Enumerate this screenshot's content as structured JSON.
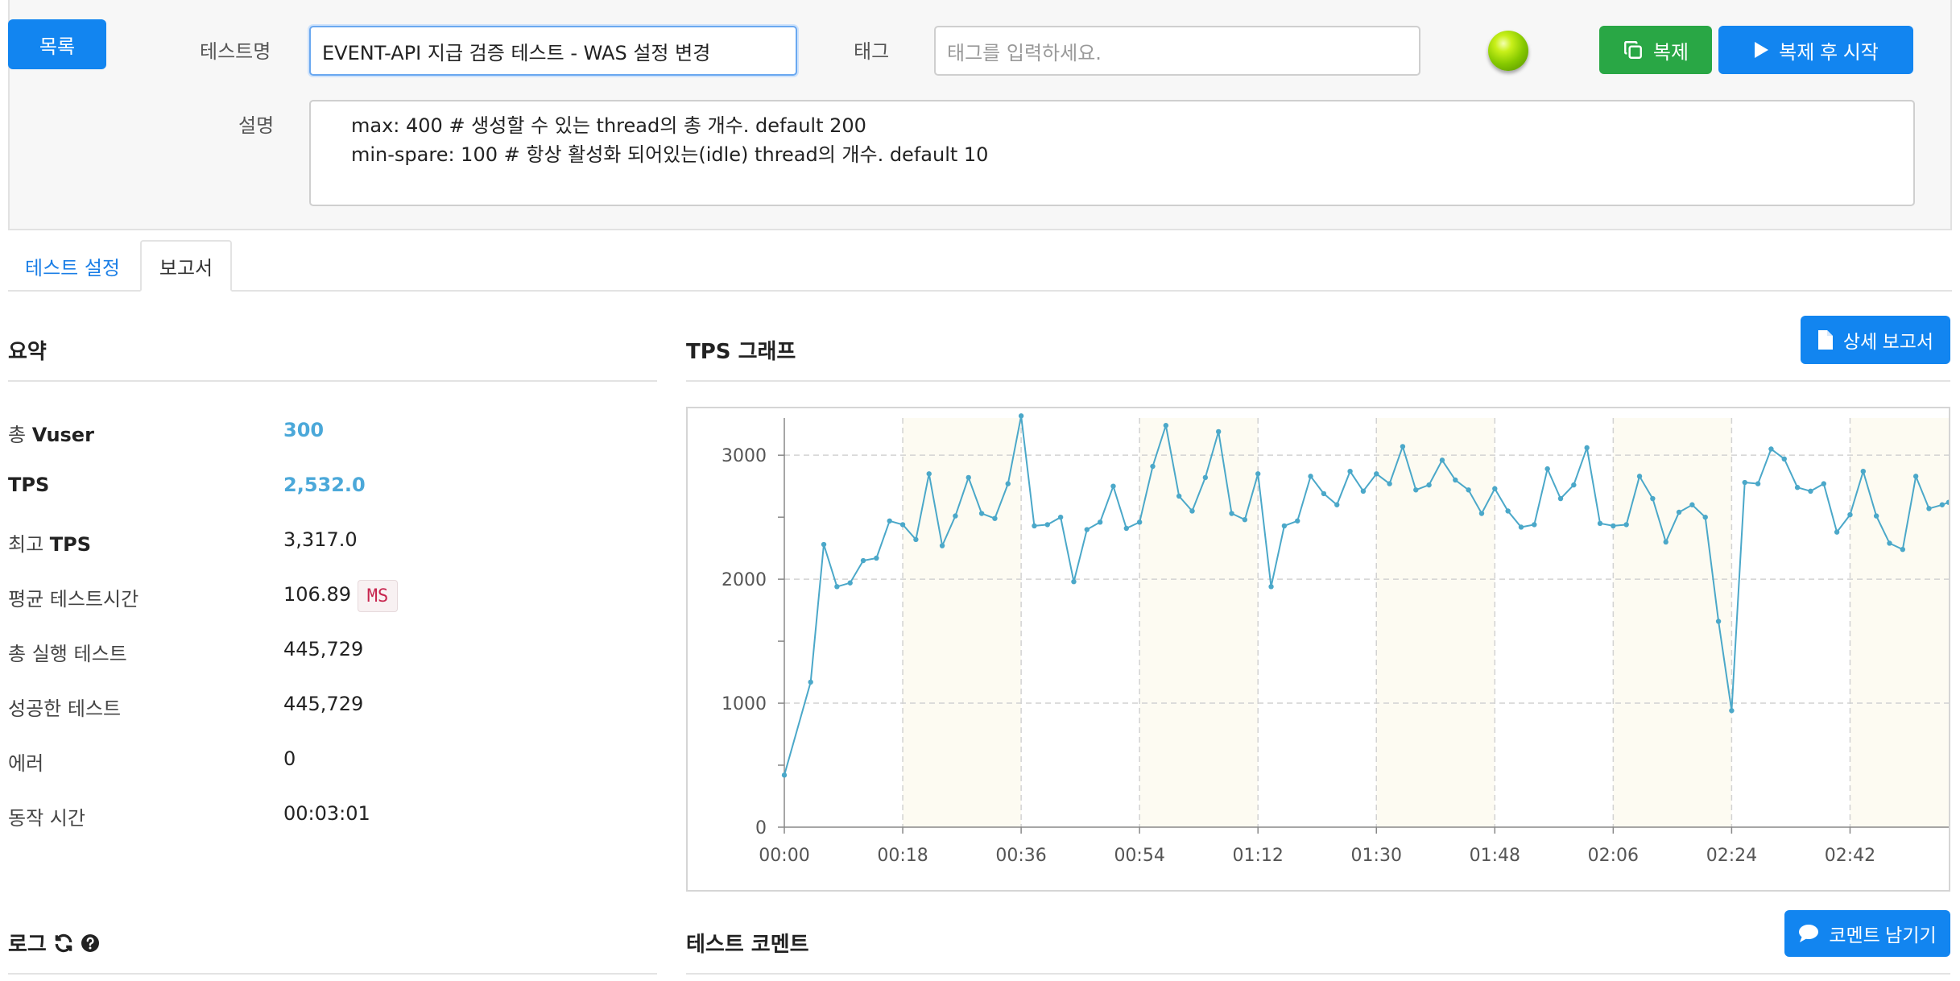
{
  "header": {
    "list_button": "목록",
    "test_name_label": "테스트명",
    "test_name_value": "EVENT-API 지급 검증 테스트 - WAS 설정 변경",
    "tag_label": "태그",
    "tag_placeholder": "태그를 입력하세요.",
    "status_color": "#86c900",
    "clone_button": "복제",
    "clone_start_button": "복제 후 시작",
    "description_label": "설명",
    "description_lines": [
      "max: 400 # 생성할 수 있는 thread의 총 개수. default 200",
      "min-spare: 100 # 항상 활성화 되어있는(idle) thread의 개수. default 10"
    ]
  },
  "tabs": [
    {
      "label": "테스트 설정",
      "active": false
    },
    {
      "label": "보고서",
      "active": true
    }
  ],
  "summary": {
    "title": "요약",
    "rows": [
      {
        "prefix": "총 ",
        "bold": "Vuser",
        "value": "300",
        "accent": true
      },
      {
        "prefix": "",
        "bold": "TPS",
        "value": "2,532.0",
        "accent": true
      },
      {
        "prefix": "최고 ",
        "bold": "TPS",
        "value": "3,317.0",
        "accent": false
      },
      {
        "prefix": "평균 테스트시간",
        "bold": "",
        "value": "106.89",
        "accent": false,
        "unit": "MS"
      },
      {
        "prefix": "총 실행 테스트",
        "bold": "",
        "value": "445,729",
        "accent": false
      },
      {
        "prefix": "성공한 테스트",
        "bold": "",
        "value": "445,729",
        "accent": false
      },
      {
        "prefix": "에러",
        "bold": "",
        "value": "0",
        "accent": false
      },
      {
        "prefix": "동작 시간",
        "bold": "",
        "value": "00:03:01",
        "accent": false
      }
    ]
  },
  "tps_section": {
    "title": "TPS 그래프",
    "detail_button": "상세 보고서"
  },
  "log_section": {
    "title": "로그"
  },
  "comment_section": {
    "title": "테스트 코멘트",
    "comment_button": "코멘트 남기기"
  },
  "colors": {
    "accent_blue": "#1285f0",
    "green": "#29a745",
    "line": "#4ba8c9",
    "plot_bg": "#fdfbf2"
  },
  "chart_data": {
    "type": "line",
    "title": "",
    "xlabel": "",
    "ylabel": "",
    "ylim": [
      0,
      3300
    ],
    "yticks": [
      0,
      1000,
      2000,
      3000
    ],
    "x_tick_labels": [
      "00:00",
      "00:18",
      "00:36",
      "00:54",
      "01:12",
      "01:30",
      "01:48",
      "02:06",
      "02:24",
      "02:42"
    ],
    "x_tick_seconds": [
      0,
      18,
      36,
      54,
      72,
      90,
      108,
      126,
      144,
      162
    ],
    "xlim": [
      0,
      177
    ],
    "grid": true,
    "legend": "none",
    "series": [
      {
        "name": "",
        "x": [
          0,
          4,
          6,
          8,
          10,
          12,
          14,
          16,
          18,
          20,
          22,
          24,
          26,
          28,
          30,
          32,
          34,
          36,
          38,
          40,
          42,
          44,
          46,
          48,
          50,
          52,
          54,
          56,
          58,
          60,
          62,
          64,
          66,
          68,
          70,
          72,
          74,
          76,
          78,
          80,
          82,
          84,
          86,
          88,
          90,
          92,
          94,
          96,
          98,
          100,
          102,
          104,
          106,
          108,
          110,
          112,
          114,
          116,
          118,
          120,
          122,
          124,
          126,
          128,
          130,
          132,
          134,
          136,
          138,
          140,
          142,
          144,
          146,
          148,
          150,
          152,
          154,
          156,
          158,
          160,
          162,
          164,
          166,
          168,
          170,
          172,
          174,
          176,
          177
        ],
        "y": [
          420,
          1170,
          2280,
          1940,
          1970,
          2150,
          2170,
          2470,
          2440,
          2320,
          2850,
          2270,
          2510,
          2820,
          2530,
          2490,
          2770,
          3317,
          2430,
          2440,
          2500,
          1980,
          2400,
          2460,
          2750,
          2410,
          2460,
          2910,
          3240,
          2670,
          2550,
          2820,
          3190,
          2530,
          2480,
          2850,
          1940,
          2430,
          2470,
          2830,
          2690,
          2600,
          2870,
          2710,
          2850,
          2770,
          3070,
          2720,
          2760,
          2960,
          2800,
          2720,
          2530,
          2730,
          2550,
          2420,
          2440,
          2890,
          2650,
          2760,
          3060,
          2450,
          2430,
          2440,
          2830,
          2650,
          2300,
          2540,
          2600,
          2500,
          1660,
          940,
          2780,
          2770,
          3050,
          2970,
          2740,
          2710,
          2770,
          2380,
          2520,
          2870,
          2510,
          2290,
          2240,
          2830,
          2570,
          2600,
          2620
        ]
      }
    ]
  }
}
